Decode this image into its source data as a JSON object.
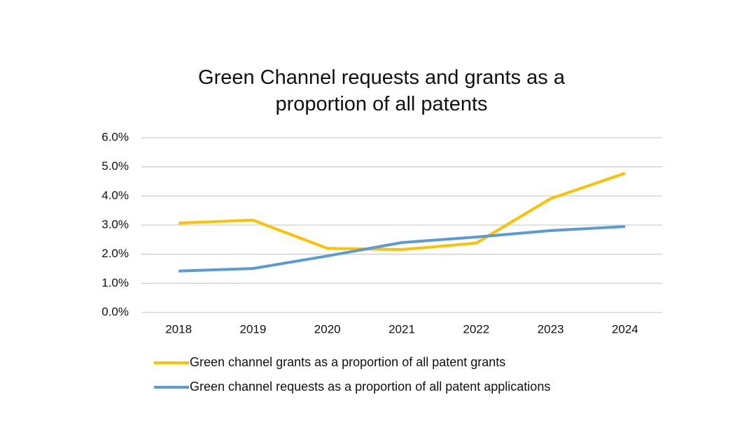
{
  "chart_data": {
    "type": "line",
    "title": "Green Channel requests and grants as a proportion of all patents",
    "categories": [
      "2018",
      "2019",
      "2020",
      "2021",
      "2022",
      "2023",
      "2024"
    ],
    "series": [
      {
        "name": "Green channel grants as a proportion of all patent grants",
        "color": "#ffc000",
        "values": [
          3.07,
          3.17,
          2.2,
          2.16,
          2.38,
          3.91,
          4.78
        ]
      },
      {
        "name": "Green channel requests as a proportion of all patent applications",
        "color": "#5b9bd5",
        "values": [
          1.42,
          1.51,
          1.94,
          2.4,
          2.59,
          2.81,
          2.95
        ]
      }
    ],
    "ylim": [
      0,
      6
    ],
    "yticks": [
      {
        "value": 0,
        "label": "0.0%"
      },
      {
        "value": 1,
        "label": "1.0%"
      },
      {
        "value": 2,
        "label": "2.0%"
      },
      {
        "value": 3,
        "label": "3.0%"
      },
      {
        "value": 4,
        "label": "4.0%"
      },
      {
        "value": 5,
        "label": "5.0%"
      },
      {
        "value": 6,
        "label": "6.0%"
      }
    ],
    "grid": true,
    "legend": "bottom"
  }
}
